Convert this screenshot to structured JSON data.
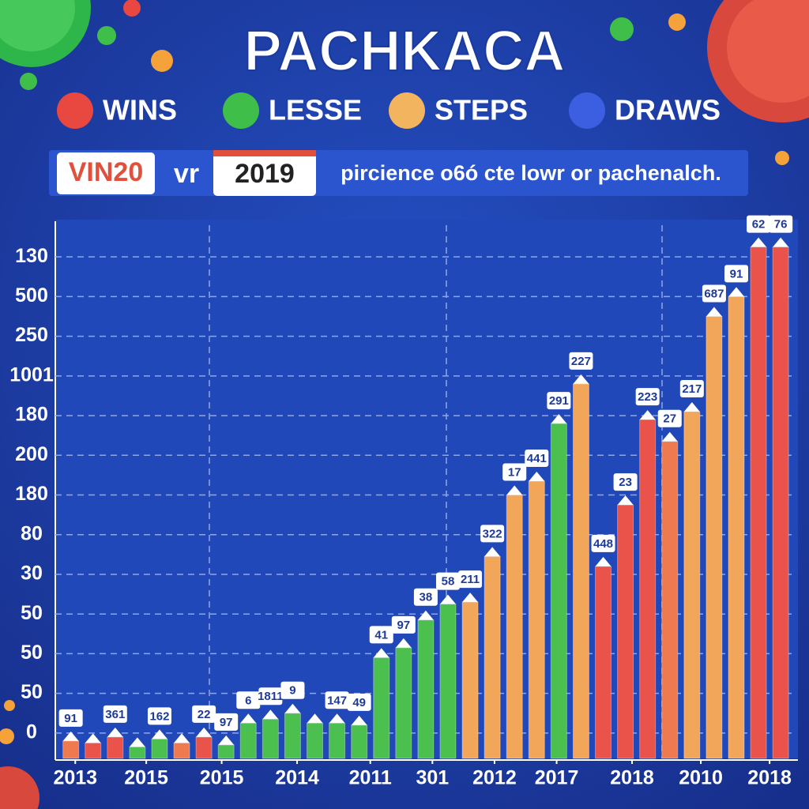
{
  "chart_data": {
    "type": "bar",
    "title": "PACHKACA",
    "legend": [
      {
        "name": "WINS",
        "color": "#e8483f"
      },
      {
        "name": "LESSE",
        "color": "#3fbf4a"
      },
      {
        "name": "STEPS",
        "color": "#f2b45e"
      },
      {
        "name": "DRAWS",
        "color": "#3b5fe0"
      }
    ],
    "annotations": [
      "VIN20",
      "vr",
      "2019",
      "pircience o6ó cte lowr or pachenalch."
    ],
    "x": [
      0,
      1,
      2,
      3,
      4,
      5,
      6,
      7,
      8,
      9,
      10,
      11,
      12,
      13,
      14,
      15,
      16,
      17,
      18,
      19,
      20,
      21,
      22,
      23,
      24,
      25,
      26,
      27,
      28,
      29,
      30,
      31,
      32
    ],
    "values": [
      -0.2,
      -0.25,
      -0.1,
      -0.35,
      -0.15,
      -0.25,
      -0.1,
      -0.3,
      0.25,
      0.35,
      0.5,
      0.25,
      0.25,
      0.2,
      1.9,
      2.15,
      2.85,
      3.25,
      3.3,
      4.45,
      6.0,
      6.35,
      7.8,
      8.8,
      4.2,
      5.75,
      7.9,
      7.35,
      8.1,
      10.5,
      11.0,
      12.25,
      12.25
    ],
    "colors": [
      "#ef7a4f",
      "#e9534a",
      "#e9534a",
      "#4cc04f",
      "#4cc04f",
      "#ef7a4f",
      "#e9534a",
      "#4cc04f",
      "#4cc04f",
      "#4cc04f",
      "#4cc04f",
      "#4cc04f",
      "#4cc04f",
      "#4cc04f",
      "#4cc04f",
      "#4cc04f",
      "#4cc04f",
      "#4cc04f",
      "#f2a65a",
      "#f2a65a",
      "#f2a65a",
      "#f2a65a",
      "#4cc04f",
      "#f2a65a",
      "#e9534a",
      "#e9534a",
      "#e9534a",
      "#ef7a4f",
      "#f2a65a",
      "#f2a65a",
      "#f2a65a",
      "#e9534a",
      "#e9534a"
    ],
    "labels": [
      "91",
      null,
      "361",
      null,
      "162",
      null,
      "22",
      "97",
      "6",
      "1811",
      "9",
      null,
      "147",
      "49",
      "41",
      "97",
      "38",
      "58",
      "211",
      "322",
      "17",
      "441",
      "291",
      "227",
      "448",
      "23",
      "223",
      "27",
      "217",
      "687",
      "91",
      "62",
      "76"
    ],
    "xlim": [
      -0.7,
      32.6
    ],
    "xticks": [
      {
        "value": 0.2,
        "label": "2013"
      },
      {
        "value": 3.4,
        "label": "2015"
      },
      {
        "value": 6.8,
        "label": "2015"
      },
      {
        "value": 10.2,
        "label": "2014"
      },
      {
        "value": 13.5,
        "label": "2011"
      },
      {
        "value": 16.3,
        "label": "301"
      },
      {
        "value": 19.1,
        "label": "2012"
      },
      {
        "value": 21.9,
        "label": "2017"
      },
      {
        "value": 25.3,
        "label": "2018"
      },
      {
        "value": 28.4,
        "label": "2010"
      },
      {
        "value": 31.5,
        "label": "2018"
      }
    ],
    "ylim": [
      -0.64,
      12.8
    ],
    "yticks": [
      0,
      {
        "value": 1,
        "label": "50"
      },
      {
        "value": 2,
        "label": "50"
      },
      {
        "value": 3,
        "label": "50"
      },
      {
        "value": 4,
        "label": "30"
      },
      {
        "value": 5,
        "label": "80"
      },
      {
        "value": 6,
        "label": "180"
      },
      {
        "value": 7,
        "label": "200"
      },
      {
        "value": 8,
        "label": "180"
      },
      {
        "value": 9,
        "label": "1001"
      },
      {
        "value": 10,
        "label": "250"
      },
      {
        "value": 11,
        "label": "500"
      },
      {
        "value": 12,
        "label": "130"
      }
    ],
    "grid": true
  }
}
